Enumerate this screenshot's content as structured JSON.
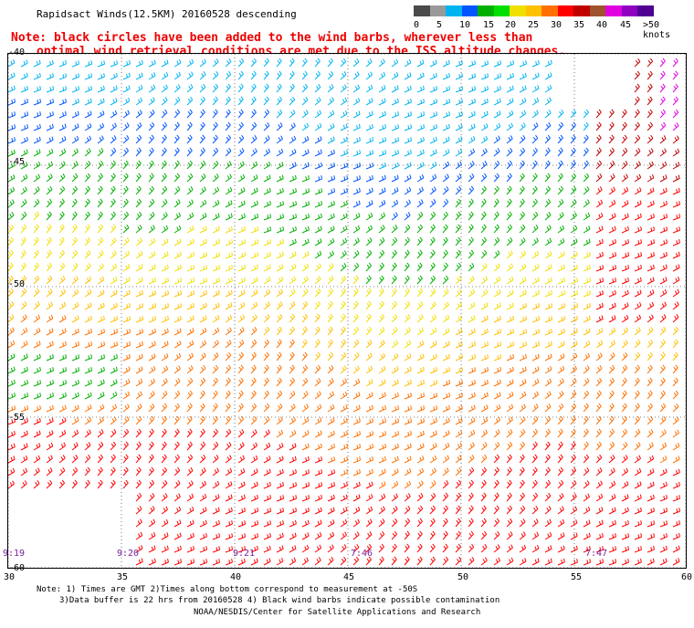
{
  "title": "Rapidsact Winds(12.5KM) 20160528 descending",
  "note": {
    "line1": "Note: black circles have been added to the wind barbs, wherever less than",
    "line2": "optimal wind retrieval conditions are met due to the ISS altitude changes."
  },
  "color_scale": {
    "labels": [
      "0",
      "5",
      "10",
      "15",
      "20",
      "25",
      "30",
      "35",
      "40",
      "45",
      ">50 knots"
    ],
    "colors": [
      "#4a4a4a",
      "#9a9a9a",
      "#00b4f0",
      "#0055ff",
      "#00b000",
      "#00e000",
      "#f0e000",
      "#ffc000",
      "#ff7000",
      "#ff0000",
      "#c00000",
      "#a0522d",
      "#e000e0",
      "#9000c0",
      "#500090"
    ]
  },
  "map": {
    "lat_labels": [
      "-40",
      "-45",
      "-50",
      "-55",
      "-60"
    ],
    "lon_labels": [
      "30",
      "35",
      "40",
      "45",
      "50",
      "55",
      "60"
    ],
    "time_labels": [
      "9:19",
      "9:20",
      "9:21",
      "7:46",
      "7:47"
    ]
  },
  "footer": {
    "line1": "Note: 1) Times are GMT 2)Times along bottom correspond to measurement at -50S",
    "line2": "3)Data buffer is 22 hrs from 20160528 4) Black wind barbs indicate possible contamination",
    "line3": "NOAA/NESDIS/Center for Satellite Applications and Research"
  }
}
